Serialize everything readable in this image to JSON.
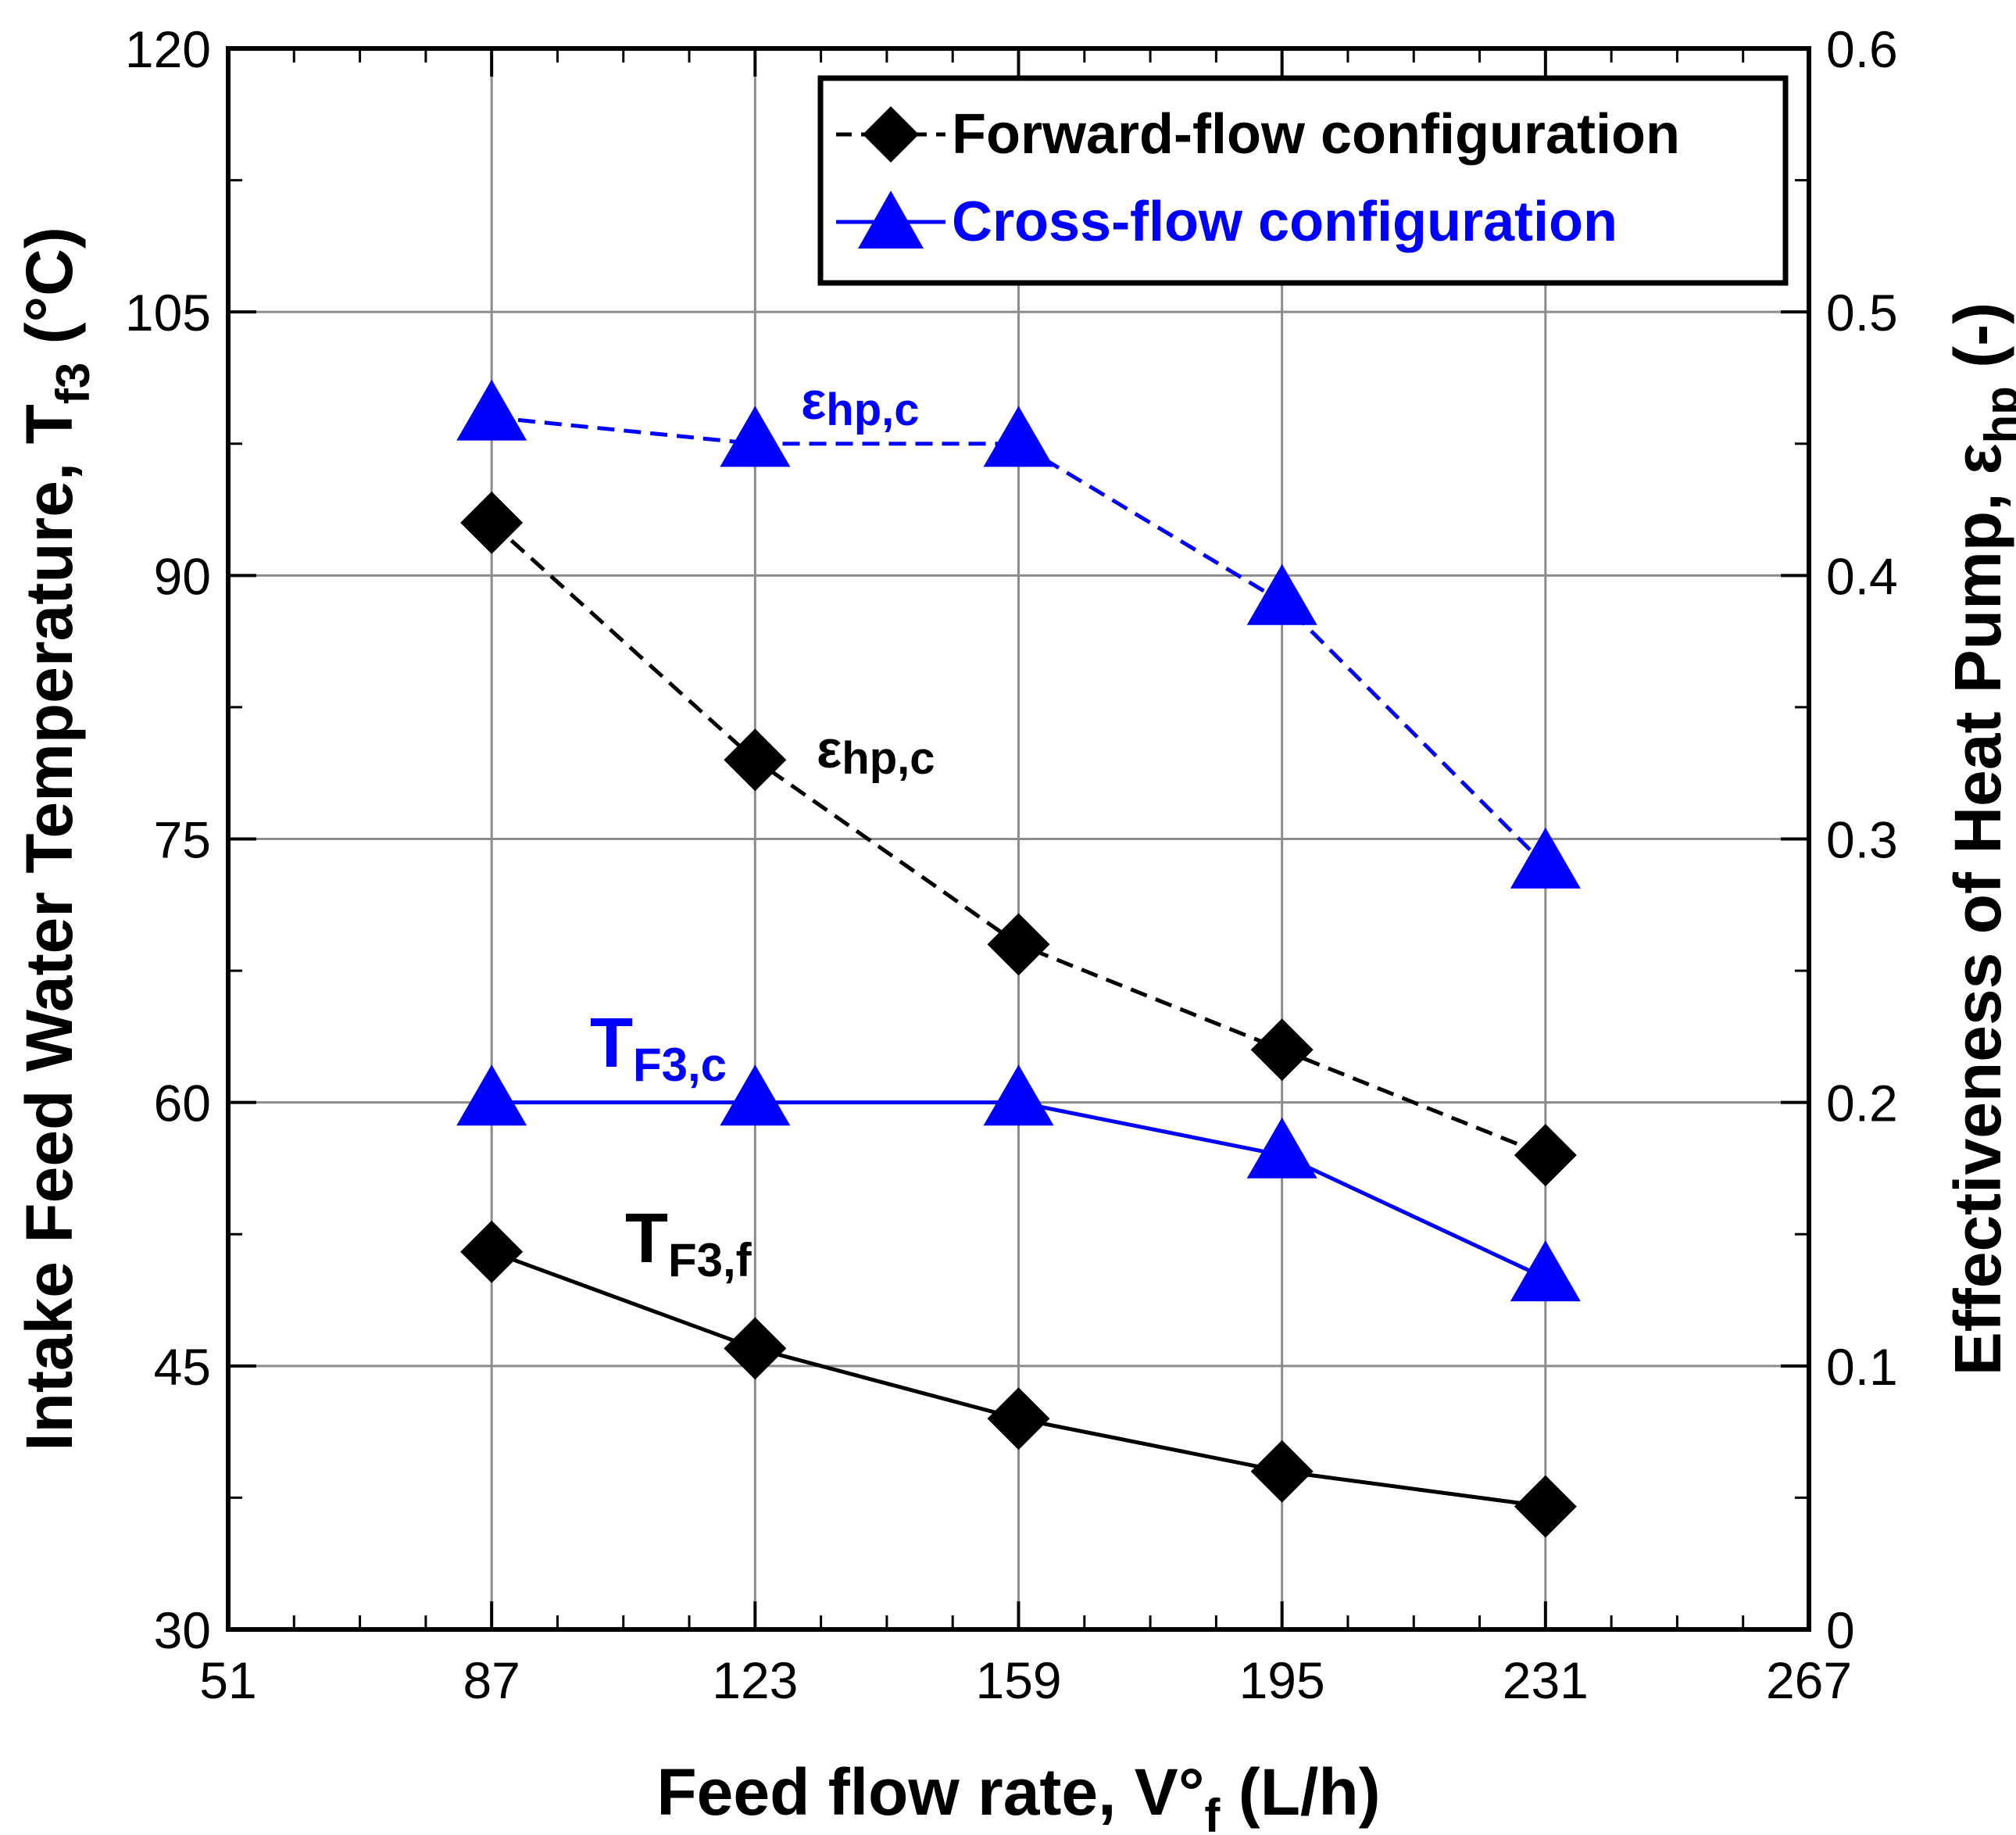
{
  "chart_data": {
    "type": "line",
    "x": [
      87,
      123,
      159,
      195,
      231
    ],
    "x_ticks": [
      "51",
      "87",
      "123",
      "159",
      "195",
      "231",
      "267"
    ],
    "xlim": [
      51,
      267
    ],
    "ylim_left": [
      30,
      120
    ],
    "ylim_right": [
      0,
      0.6
    ],
    "y_left_ticks": [
      "30",
      "45",
      "60",
      "75",
      "90",
      "105",
      "120"
    ],
    "y_right_ticks": [
      "0",
      "0.1",
      "0.2",
      "0.3",
      "0.4",
      "0.5",
      "0.6"
    ],
    "xlabel": {
      "main": "Feed flow rate, V°",
      "sub": "f",
      "unit": " (L/h)"
    },
    "ylabel_left": {
      "main": "Intake Feed Water Temperature, T",
      "sub": "f3",
      "unit": " (°C)"
    },
    "ylabel_right": {
      "main": "Effectiveness of Heat Pump, ε",
      "sub": "hp",
      "unit": " (-)"
    },
    "grid": true,
    "legend_position": "top-right",
    "legend": [
      {
        "label": "Forward-flow configuration",
        "color": "#000000",
        "marker": "diamond"
      },
      {
        "label": "Cross-flow configuration",
        "color": "#0000ff",
        "marker": "triangle"
      }
    ],
    "series": [
      {
        "group": "forward",
        "axis": "right",
        "style": "dashed",
        "color": "#000000",
        "marker": "diamond",
        "values": [
          0.42,
          0.33,
          0.26,
          0.22,
          0.18
        ]
      },
      {
        "group": "cross",
        "axis": "right",
        "style": "dashed",
        "color": "#0000ff",
        "marker": "triangle",
        "values": [
          0.46,
          0.45,
          0.45,
          0.39,
          0.29
        ]
      },
      {
        "group": "forward",
        "axis": "left",
        "style": "solid",
        "color": "#000000",
        "marker": "diamond",
        "values": [
          51.5,
          46,
          42,
          39,
          37
        ]
      },
      {
        "group": "cross",
        "axis": "left",
        "style": "solid",
        "color": "#0000ff",
        "marker": "triangle",
        "values": [
          60,
          60,
          60,
          57,
          50
        ]
      }
    ],
    "annotations": [
      {
        "main": "ε",
        "sub": "hp,c",
        "color": "#0000ff"
      },
      {
        "main": "ε",
        "sub": "hp,c",
        "color": "#000000"
      },
      {
        "main": "T",
        "sub": "F3,c",
        "color": "#0000ff"
      },
      {
        "main": "T",
        "sub": "F3,f",
        "color": "#000000"
      }
    ]
  }
}
